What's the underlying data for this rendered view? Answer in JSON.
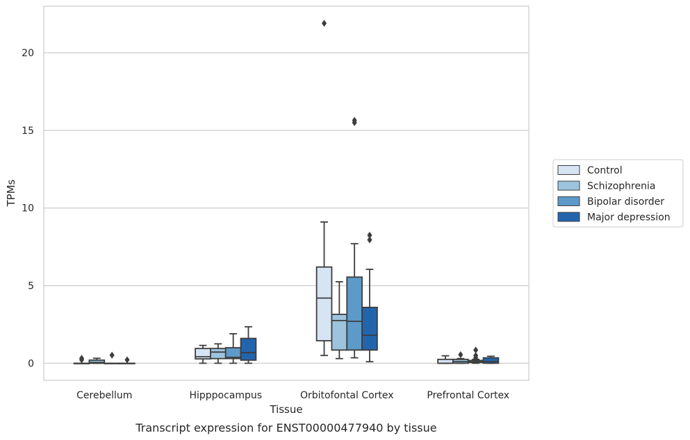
{
  "chart_data": {
    "type": "box",
    "caption": "Transcript expression for ENST00000477940 by tissue",
    "xlabel": "Tissue",
    "ylabel": "TPMs",
    "ylim": [
      -1.1,
      23.0
    ],
    "yticks": [
      0,
      5,
      10,
      15,
      20
    ],
    "grid": "horizontal",
    "legend_position": "right",
    "categories": [
      "Cerebellum",
      "Hipppocampus",
      "Orbitofontal Cortex",
      "Prefrontal Cortex"
    ],
    "series": [
      {
        "name": "Control",
        "color": "#d6e4f3",
        "boxes": [
          {
            "whisker_low": 0.0,
            "q1": 0.0,
            "median": 0.0,
            "q3": 0.0,
            "whisker_high": 0.0,
            "outliers": [
              0.22,
              0.32
            ]
          },
          {
            "whisker_low": 0.0,
            "q1": 0.28,
            "median": 0.42,
            "q3": 0.95,
            "whisker_high": 1.15,
            "outliers": []
          },
          {
            "whisker_low": 0.5,
            "q1": 1.45,
            "median": 4.2,
            "q3": 6.2,
            "whisker_high": 9.1,
            "outliers": [
              21.9
            ]
          },
          {
            "whisker_low": 0.0,
            "q1": 0.0,
            "median": 0.0,
            "q3": 0.25,
            "whisker_high": 0.48,
            "outliers": []
          }
        ]
      },
      {
        "name": "Schizophrenia",
        "color": "#9dc4de",
        "boxes": [
          {
            "whisker_low": 0.0,
            "q1": 0.0,
            "median": 0.05,
            "q3": 0.2,
            "whisker_high": 0.32,
            "outliers": []
          },
          {
            "whisker_low": 0.0,
            "q1": 0.3,
            "median": 0.72,
            "q3": 0.95,
            "whisker_high": 1.25,
            "outliers": []
          },
          {
            "whisker_low": 0.3,
            "q1": 0.85,
            "median": 2.75,
            "q3": 3.15,
            "whisker_high": 5.25,
            "outliers": []
          },
          {
            "whisker_low": 0.0,
            "q1": 0.0,
            "median": 0.1,
            "q3": 0.25,
            "whisker_high": 0.3,
            "outliers": [
              0.55
            ]
          }
        ]
      },
      {
        "name": "Bipolar disorder",
        "color": "#5d9ac9",
        "boxes": [
          {
            "whisker_low": 0.0,
            "q1": 0.0,
            "median": 0.0,
            "q3": 0.0,
            "whisker_high": 0.0,
            "outliers": [
              0.52
            ]
          },
          {
            "whisker_low": 0.0,
            "q1": 0.3,
            "median": 0.38,
            "q3": 1.0,
            "whisker_high": 1.9,
            "outliers": []
          },
          {
            "whisker_low": 0.35,
            "q1": 0.85,
            "median": 2.7,
            "q3": 5.55,
            "whisker_high": 7.7,
            "outliers": [
              15.5,
              15.65
            ]
          },
          {
            "whisker_low": 0.0,
            "q1": 0.05,
            "median": 0.1,
            "q3": 0.18,
            "whisker_high": 0.25,
            "outliers": [
              0.35,
              0.5,
              0.85
            ]
          }
        ]
      },
      {
        "name": "Major depression",
        "color": "#2265ad",
        "boxes": [
          {
            "whisker_low": 0.0,
            "q1": 0.0,
            "median": 0.0,
            "q3": 0.0,
            "whisker_high": 0.0,
            "outliers": [
              0.22
            ]
          },
          {
            "whisker_low": 0.0,
            "q1": 0.2,
            "median": 0.68,
            "q3": 1.6,
            "whisker_high": 2.35,
            "outliers": []
          },
          {
            "whisker_low": 0.1,
            "q1": 0.85,
            "median": 1.8,
            "q3": 3.6,
            "whisker_high": 6.05,
            "outliers": [
              7.95,
              8.25
            ]
          },
          {
            "whisker_low": 0.0,
            "q1": 0.0,
            "median": 0.1,
            "q3": 0.35,
            "whisker_high": 0.45,
            "outliers": []
          }
        ]
      }
    ]
  }
}
